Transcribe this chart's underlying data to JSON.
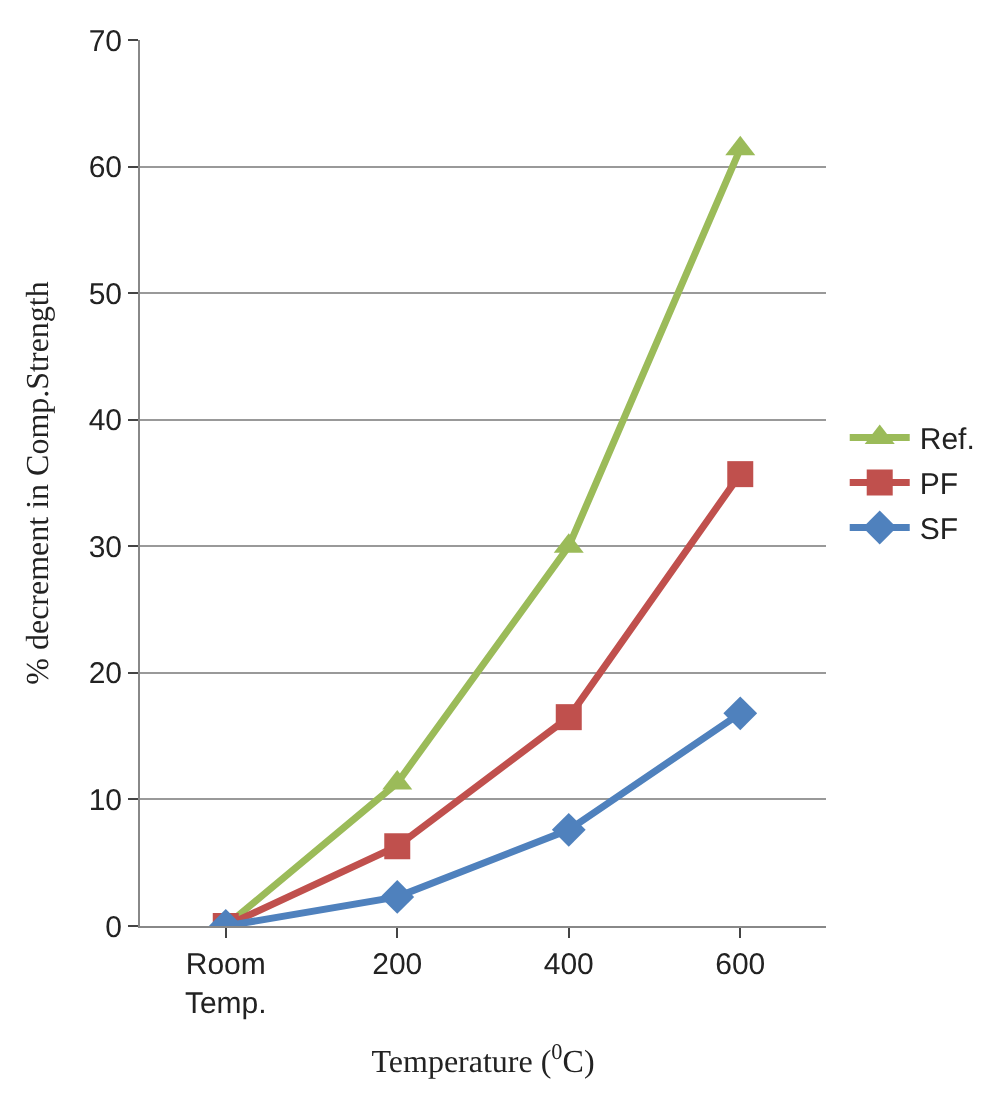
{
  "chart_data": {
    "type": "line",
    "xlabel": "Temperature ($^{0}$C)",
    "ylabel": "% decrement in Comp.Strength",
    "categories": [
      "Room\nTemp.",
      "200",
      "400",
      "600"
    ],
    "series": [
      {
        "name": "Ref.",
        "color": "#9bbb59",
        "marker": "triangle",
        "values": [
          0,
          11.3,
          30,
          61.4
        ]
      },
      {
        "name": "PF",
        "color": "#c0504d",
        "marker": "square",
        "values": [
          0,
          6.3,
          16.5,
          35.7
        ]
      },
      {
        "name": "SF",
        "color": "#4f81bd",
        "marker": "diamond",
        "values": [
          0,
          2.3,
          7.6,
          16.8
        ]
      }
    ],
    "ylim": [
      0,
      70
    ],
    "yticks": [
      0,
      10,
      20,
      30,
      40,
      50,
      60,
      70
    ],
    "grid": "y",
    "legend": "right",
    "line_style": "solid"
  }
}
